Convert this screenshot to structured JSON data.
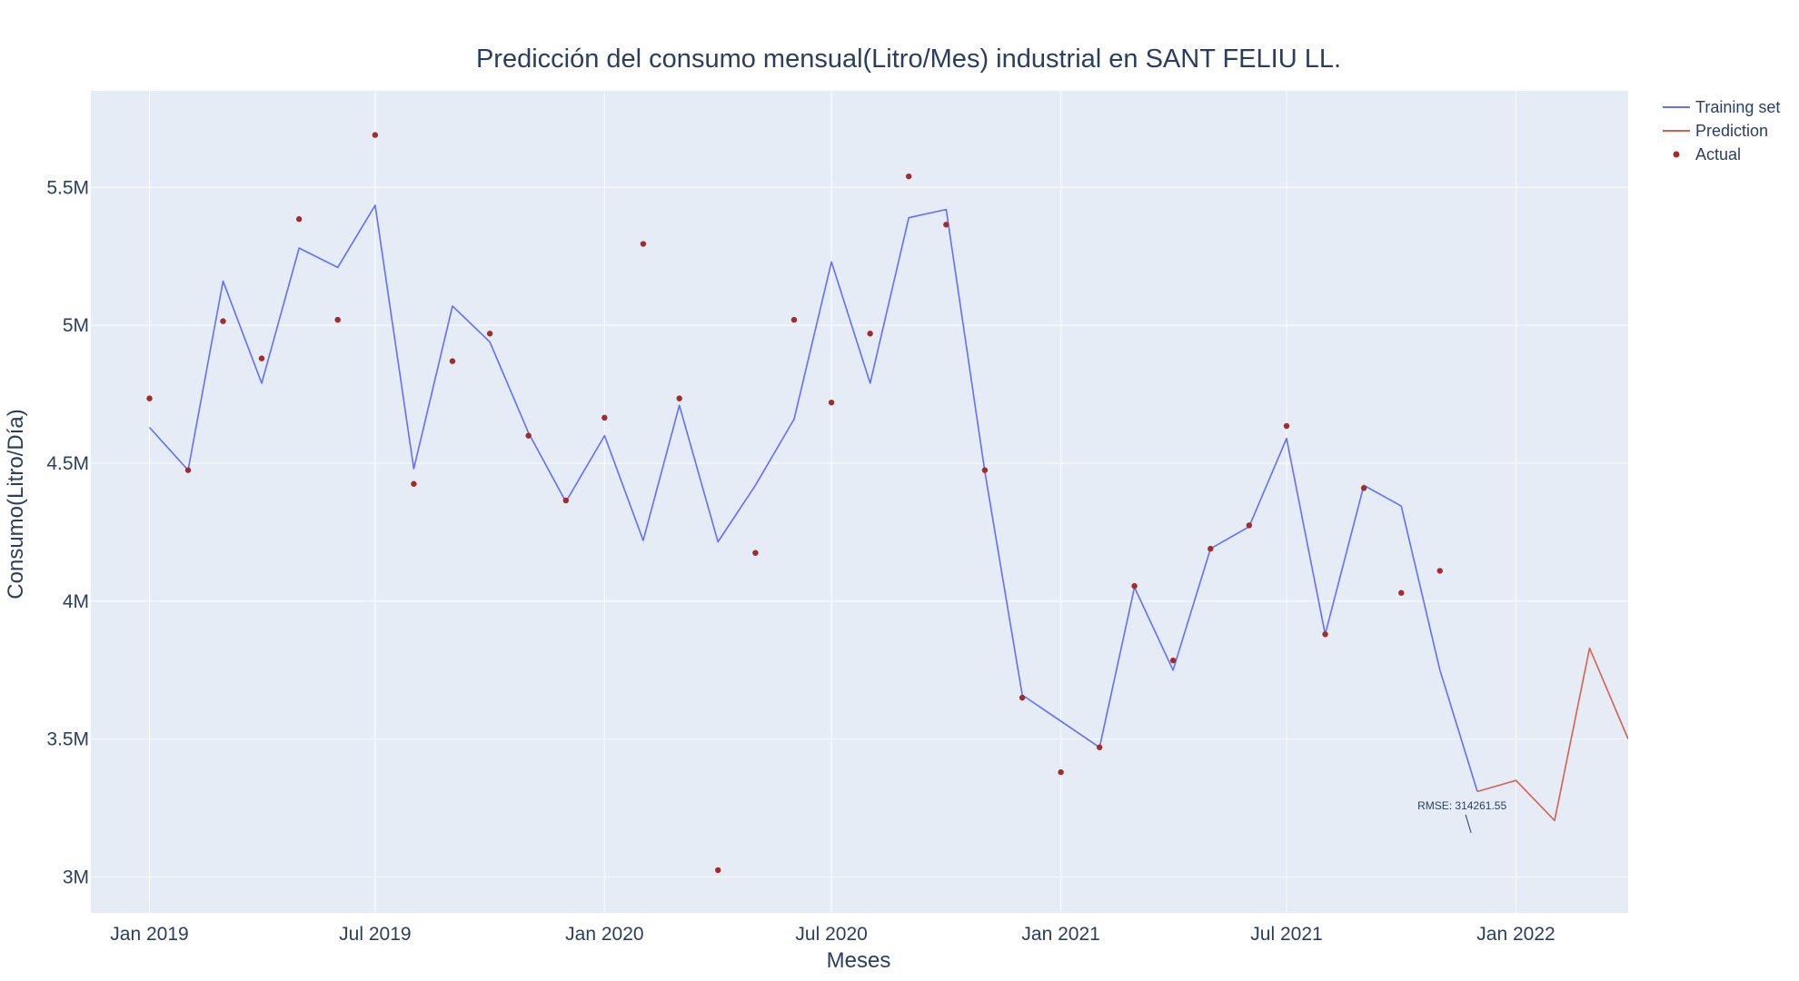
{
  "chart_data": {
    "type": "line",
    "title": "Predicción del consumo mensual(Litro/Mes) industrial en SANT FELIU LL.",
    "xlabel": "Meses",
    "ylabel": "Consumo(Litro/Día)",
    "xlim": [
      "2018-11-15",
      "2022-04-01"
    ],
    "ylim": [
      2870000,
      5850000
    ],
    "x_ticks": [
      {
        "date": "2019-01-01",
        "label": "Jan 2019"
      },
      {
        "date": "2019-07-01",
        "label": "Jul 2019"
      },
      {
        "date": "2020-01-01",
        "label": "Jan 2020"
      },
      {
        "date": "2020-07-01",
        "label": "Jul 2020"
      },
      {
        "date": "2021-01-01",
        "label": "Jan 2021"
      },
      {
        "date": "2021-07-01",
        "label": "Jul 2021"
      },
      {
        "date": "2022-01-01",
        "label": "Jan 2022"
      }
    ],
    "y_ticks": [
      {
        "value": 3000000,
        "label": "3M"
      },
      {
        "value": 3500000,
        "label": "3.5M"
      },
      {
        "value": 4000000,
        "label": "4M"
      },
      {
        "value": 4500000,
        "label": "4.5M"
      },
      {
        "value": 5000000,
        "label": "5M"
      },
      {
        "value": 5500000,
        "label": "5.5M"
      }
    ],
    "grid": true,
    "legend_position": "top-right outside plot",
    "plot_background": "#e5ecf6",
    "series": [
      {
        "name": "Training set",
        "kind": "line",
        "color": "#636efa",
        "points": [
          [
            "2019-01-01",
            4630000
          ],
          [
            "2019-02-01",
            4475000
          ],
          [
            "2019-03-01",
            5160000
          ],
          [
            "2019-04-01",
            4790000
          ],
          [
            "2019-05-01",
            5280000
          ],
          [
            "2019-06-01",
            5210000
          ],
          [
            "2019-07-01",
            5435000
          ],
          [
            "2019-08-01",
            4480000
          ],
          [
            "2019-09-01",
            5070000
          ],
          [
            "2019-10-01",
            4940000
          ],
          [
            "2019-11-01",
            4610000
          ],
          [
            "2019-12-01",
            4360000
          ],
          [
            "2020-01-01",
            4600000
          ],
          [
            "2020-02-01",
            4220000
          ],
          [
            "2020-03-01",
            4710000
          ],
          [
            "2020-04-01",
            4215000
          ],
          [
            "2020-05-01",
            4420000
          ],
          [
            "2020-06-01",
            4660000
          ],
          [
            "2020-07-01",
            5230000
          ],
          [
            "2020-08-01",
            4790000
          ],
          [
            "2020-09-01",
            5390000
          ],
          [
            "2020-10-01",
            5420000
          ],
          [
            "2020-11-01",
            4470000
          ],
          [
            "2020-12-01",
            3660000
          ],
          [
            "2021-02-01",
            3470000
          ],
          [
            "2021-03-01",
            4050000
          ],
          [
            "2021-04-01",
            3750000
          ],
          [
            "2021-05-01",
            4190000
          ],
          [
            "2021-06-01",
            4270000
          ],
          [
            "2021-07-01",
            4590000
          ],
          [
            "2021-08-01",
            3880000
          ],
          [
            "2021-09-01",
            4420000
          ],
          [
            "2021-10-01",
            4345000
          ],
          [
            "2021-11-01",
            3750000
          ],
          [
            "2021-12-01",
            3310000
          ]
        ]
      },
      {
        "name": "Prediction",
        "kind": "line",
        "color": "#d95f4f",
        "points": [
          [
            "2021-12-01",
            3310000
          ],
          [
            "2022-01-01",
            3350000
          ],
          [
            "2022-02-01",
            3205000
          ],
          [
            "2022-03-01",
            3830000
          ],
          [
            "2022-04-01",
            3500000
          ]
        ]
      },
      {
        "name": "Actual",
        "kind": "markers",
        "color": "#a52a2a",
        "points": [
          [
            "2019-01-01",
            4735000
          ],
          [
            "2019-02-01",
            4475000
          ],
          [
            "2019-03-01",
            5015000
          ],
          [
            "2019-04-01",
            4880000
          ],
          [
            "2019-05-01",
            5385000
          ],
          [
            "2019-06-01",
            5020000
          ],
          [
            "2019-07-01",
            5690000
          ],
          [
            "2019-08-01",
            4425000
          ],
          [
            "2019-09-01",
            4870000
          ],
          [
            "2019-10-01",
            4970000
          ],
          [
            "2019-11-01",
            4600000
          ],
          [
            "2019-12-01",
            4365000
          ],
          [
            "2020-01-01",
            4665000
          ],
          [
            "2020-02-01",
            5295000
          ],
          [
            "2020-03-01",
            4735000
          ],
          [
            "2020-04-01",
            3025000
          ],
          [
            "2020-05-01",
            4175000
          ],
          [
            "2020-06-01",
            5020000
          ],
          [
            "2020-07-01",
            4720000
          ],
          [
            "2020-08-01",
            4970000
          ],
          [
            "2020-09-01",
            5540000
          ],
          [
            "2020-10-01",
            5365000
          ],
          [
            "2020-11-01",
            4475000
          ],
          [
            "2020-12-01",
            3650000
          ],
          [
            "2021-01-01",
            3380000
          ],
          [
            "2021-02-01",
            3470000
          ],
          [
            "2021-03-01",
            4055000
          ],
          [
            "2021-04-01",
            3785000
          ],
          [
            "2021-05-01",
            4190000
          ],
          [
            "2021-06-01",
            4275000
          ],
          [
            "2021-07-01",
            4635000
          ],
          [
            "2021-08-01",
            3880000
          ],
          [
            "2021-09-01",
            4410000
          ],
          [
            "2021-10-01",
            4030000
          ],
          [
            "2021-11-01",
            4110000
          ]
        ]
      }
    ],
    "annotations": [
      {
        "text": "RMSE: 314261.55",
        "x": "2021-11-26",
        "y": 3160000
      }
    ]
  }
}
